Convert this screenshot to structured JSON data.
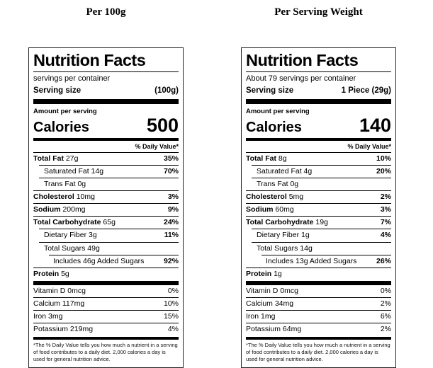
{
  "labels": [
    {
      "column_header": "Per 100g",
      "title": "Nutrition Facts",
      "servings_per_container": "servings per container",
      "serving_size_label": "Serving size",
      "serving_size_value": "(100g)",
      "amount_per_serving": "Amount per serving",
      "calories_label": "Calories",
      "calories_value": "500",
      "daily_value_header": "% Daily Value*",
      "rows": [
        {
          "name": "Total Fat",
          "amount": "27g",
          "dv": "35%"
        },
        {
          "name": "Saturated Fat",
          "amount": "14g",
          "dv": "70%"
        },
        {
          "name": "Trans Fat",
          "amount": "0g",
          "dv": ""
        },
        {
          "name": "Cholesterol",
          "amount": "10mg",
          "dv": "3%"
        },
        {
          "name": "Sodium",
          "amount": "200mg",
          "dv": "9%"
        },
        {
          "name": "Total Carbohydrate",
          "amount": "65g",
          "dv": "24%"
        },
        {
          "name": "Dietary Fiber",
          "amount": "3g",
          "dv": "11%"
        },
        {
          "name": "Total Sugars",
          "amount": "49g",
          "dv": ""
        },
        {
          "name": "Includes 46g Added Sugars",
          "amount": "",
          "dv": "92%"
        },
        {
          "name": "Protein",
          "amount": "5g",
          "dv": ""
        }
      ],
      "vitamins": [
        {
          "name": "Vitamin D 0mcg",
          "dv": "0%"
        },
        {
          "name": "Calcium 117mg",
          "dv": "10%"
        },
        {
          "name": "Iron 3mg",
          "dv": "15%"
        },
        {
          "name": "Potassium 219mg",
          "dv": "4%"
        }
      ],
      "footnote": "*The % Daily Value tells you how much a nutrient in a serving of food contributes to a daily diet. 2,000 calories a day is used for general nutrition advice."
    },
    {
      "column_header": "Per Serving Weight",
      "title": "Nutrition Facts",
      "servings_per_container": "About 79 servings per container",
      "serving_size_label": "Serving size",
      "serving_size_value": "1 Piece (29g)",
      "amount_per_serving": "Amount per serving",
      "calories_label": "Calories",
      "calories_value": "140",
      "daily_value_header": "% Daily Value*",
      "rows": [
        {
          "name": "Total Fat",
          "amount": "8g",
          "dv": "10%"
        },
        {
          "name": "Saturated Fat",
          "amount": "4g",
          "dv": "20%"
        },
        {
          "name": "Trans Fat",
          "amount": "0g",
          "dv": ""
        },
        {
          "name": "Cholesterol",
          "amount": "5mg",
          "dv": "2%"
        },
        {
          "name": "Sodium",
          "amount": "60mg",
          "dv": "3%"
        },
        {
          "name": "Total Carbohydrate",
          "amount": "19g",
          "dv": "7%"
        },
        {
          "name": "Dietary Fiber",
          "amount": "1g",
          "dv": "4%"
        },
        {
          "name": "Total Sugars",
          "amount": "14g",
          "dv": ""
        },
        {
          "name": "Includes 13g Added Sugars",
          "amount": "",
          "dv": "26%"
        },
        {
          "name": "Protein",
          "amount": "1g",
          "dv": ""
        }
      ],
      "vitamins": [
        {
          "name": "Vitamin D 0mcg",
          "dv": "0%"
        },
        {
          "name": "Calcium 34mg",
          "dv": "2%"
        },
        {
          "name": "Iron 1mg",
          "dv": "6%"
        },
        {
          "name": "Potassium 64mg",
          "dv": "2%"
        }
      ],
      "footnote": "*The % Daily Value tells you how much a nutrient in a serving of food contributes to a daily diet. 2,000 calories a day is used for general nutrition advice."
    }
  ],
  "colors": {
    "text": "#000000",
    "background": "#ffffff",
    "rule": "#000000"
  }
}
